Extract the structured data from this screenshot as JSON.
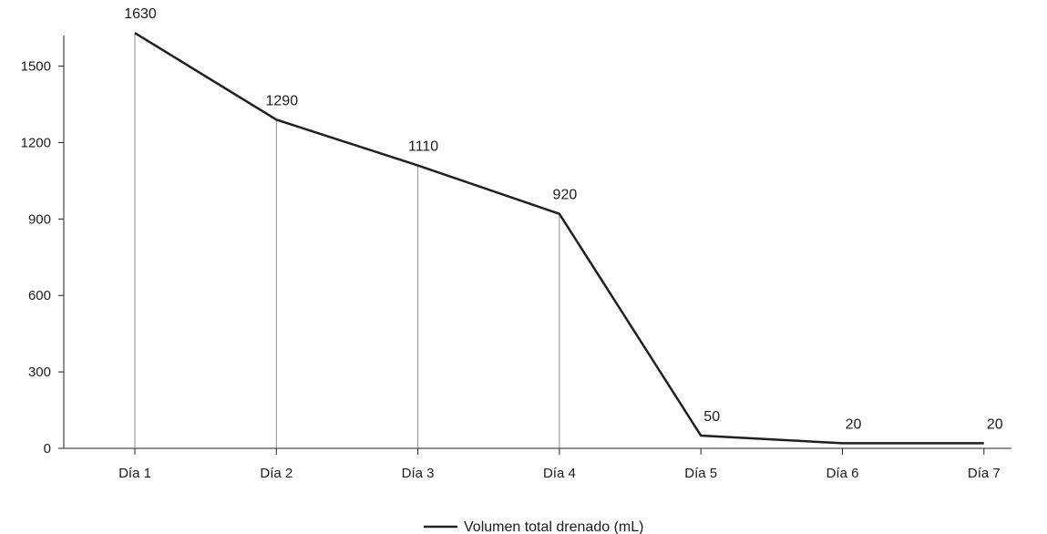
{
  "chart_data": {
    "type": "line",
    "categories": [
      "Día 1",
      "Día 2",
      "Día 3",
      "Día 4",
      "Día 5",
      "Día 6",
      "Día 7"
    ],
    "series": [
      {
        "name": "Volumen total drenado (mL)",
        "values": [
          1630,
          1290,
          1110,
          920,
          50,
          20,
          20
        ],
        "color": "#231f20"
      }
    ],
    "data_labels": [
      "1630",
      "1290",
      "1110",
      "920",
      "50",
      "20",
      "20"
    ],
    "yticks": [
      0,
      300,
      600,
      900,
      1200,
      1500
    ],
    "ylim": [
      0,
      1620
    ],
    "title": "",
    "xlabel": "",
    "ylabel": "",
    "drop_lines": true,
    "grid": false,
    "legend_position": "bottom-center"
  }
}
